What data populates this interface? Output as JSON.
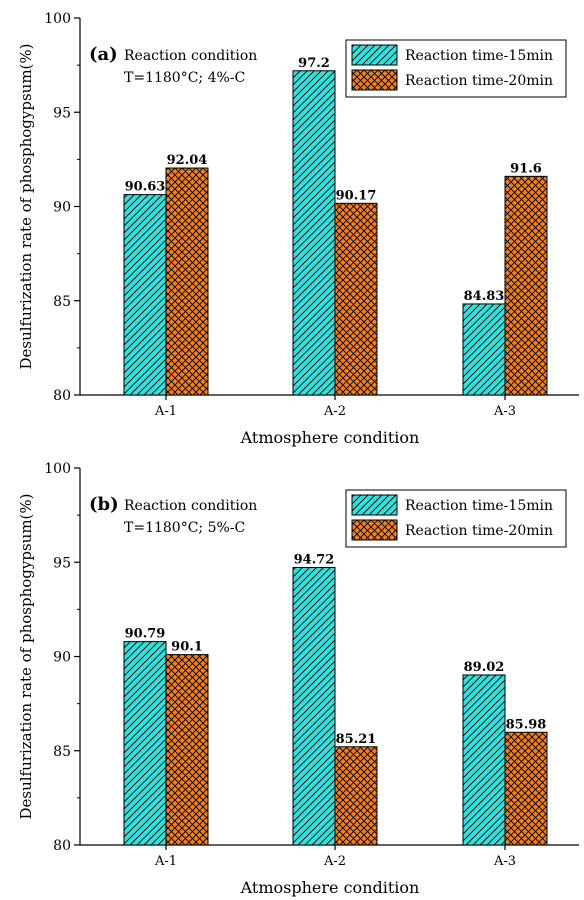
{
  "chart_data": [
    {
      "type": "bar",
      "panel_label": "(a)",
      "annotation_lines": [
        "Reaction condition",
        "T=1180°C; 4%-C"
      ],
      "xlabel": "Atmosphere condition",
      "ylabel": "Desulfurization rate of phosphogypsum(%)",
      "ylim": [
        80,
        100
      ],
      "yticks": [
        "80",
        "85",
        "90",
        "95",
        "100"
      ],
      "categories": [
        "A-1",
        "A-2",
        "A-3"
      ],
      "legend_position": "top-right",
      "series": [
        {
          "name": "Reaction time-15min",
          "color": "#33e0dd",
          "pattern": "diagonal-hatch",
          "values": [
            90.63,
            97.2,
            84.83
          ],
          "labels": [
            "90.63",
            "97.2",
            "84.83"
          ]
        },
        {
          "name": "Reaction time-20min",
          "color": "#f0801f",
          "pattern": "cross-hatch",
          "values": [
            92.04,
            90.17,
            91.6
          ],
          "labels": [
            "92.04",
            "90.17",
            "91.6"
          ]
        }
      ]
    },
    {
      "type": "bar",
      "panel_label": "(b)",
      "annotation_lines": [
        "Reaction condition",
        "T=1180°C; 5%-C"
      ],
      "xlabel": "Atmosphere condition",
      "ylabel": "Desulfurization rate of phosphogypsum(%)",
      "ylim": [
        80,
        100
      ],
      "yticks": [
        "80",
        "85",
        "90",
        "95",
        "100"
      ],
      "categories": [
        "A-1",
        "A-2",
        "A-3"
      ],
      "legend_position": "top-right",
      "series": [
        {
          "name": "Reaction time-15min",
          "color": "#33e0dd",
          "pattern": "diagonal-hatch",
          "values": [
            90.79,
            94.72,
            89.02
          ],
          "labels": [
            "90.79",
            "94.72",
            "89.02"
          ]
        },
        {
          "name": "Reaction time-20min",
          "color": "#f0801f",
          "pattern": "cross-hatch",
          "values": [
            90.1,
            85.21,
            85.98
          ],
          "labels": [
            "90.1",
            "85.21",
            "85.98"
          ]
        }
      ]
    }
  ]
}
